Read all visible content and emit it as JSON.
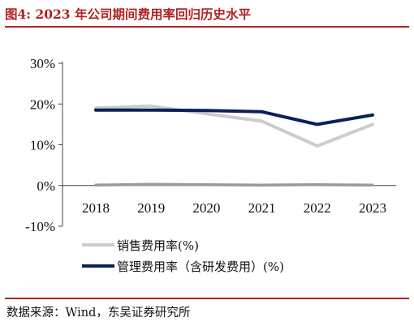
{
  "figure": {
    "title": "图4:  2023 年公司期间费用率回归历史水平",
    "source": "数据来源：Wind，东吴证券研究所"
  },
  "chart_data": {
    "type": "line",
    "title": "",
    "xlabel": "",
    "ylabel": "",
    "categories": [
      "2018",
      "2019",
      "2020",
      "2021",
      "2022",
      "2023"
    ],
    "ylim": [
      -10,
      30
    ],
    "yticks": [
      "-10%",
      "0%",
      "10%",
      "20%",
      "30%"
    ],
    "ytick_values": [
      -10,
      0,
      10,
      20,
      30
    ],
    "grid": false,
    "legend_position": "bottom-left",
    "series": [
      {
        "name": "销售费用率(%)",
        "color": "#cccccc",
        "values": [
          19.0,
          19.5,
          17.6,
          15.8,
          9.7,
          15.0
        ]
      },
      {
        "name": "管理费用率（含研发费用）(%)",
        "color": "#0b1f5c",
        "values": [
          18.5,
          18.5,
          18.4,
          18.1,
          15.0,
          17.3
        ]
      },
      {
        "name": "",
        "color": "#999999",
        "values": [
          0.1,
          0.3,
          0.2,
          0.1,
          0.2,
          0.1
        ]
      }
    ]
  }
}
